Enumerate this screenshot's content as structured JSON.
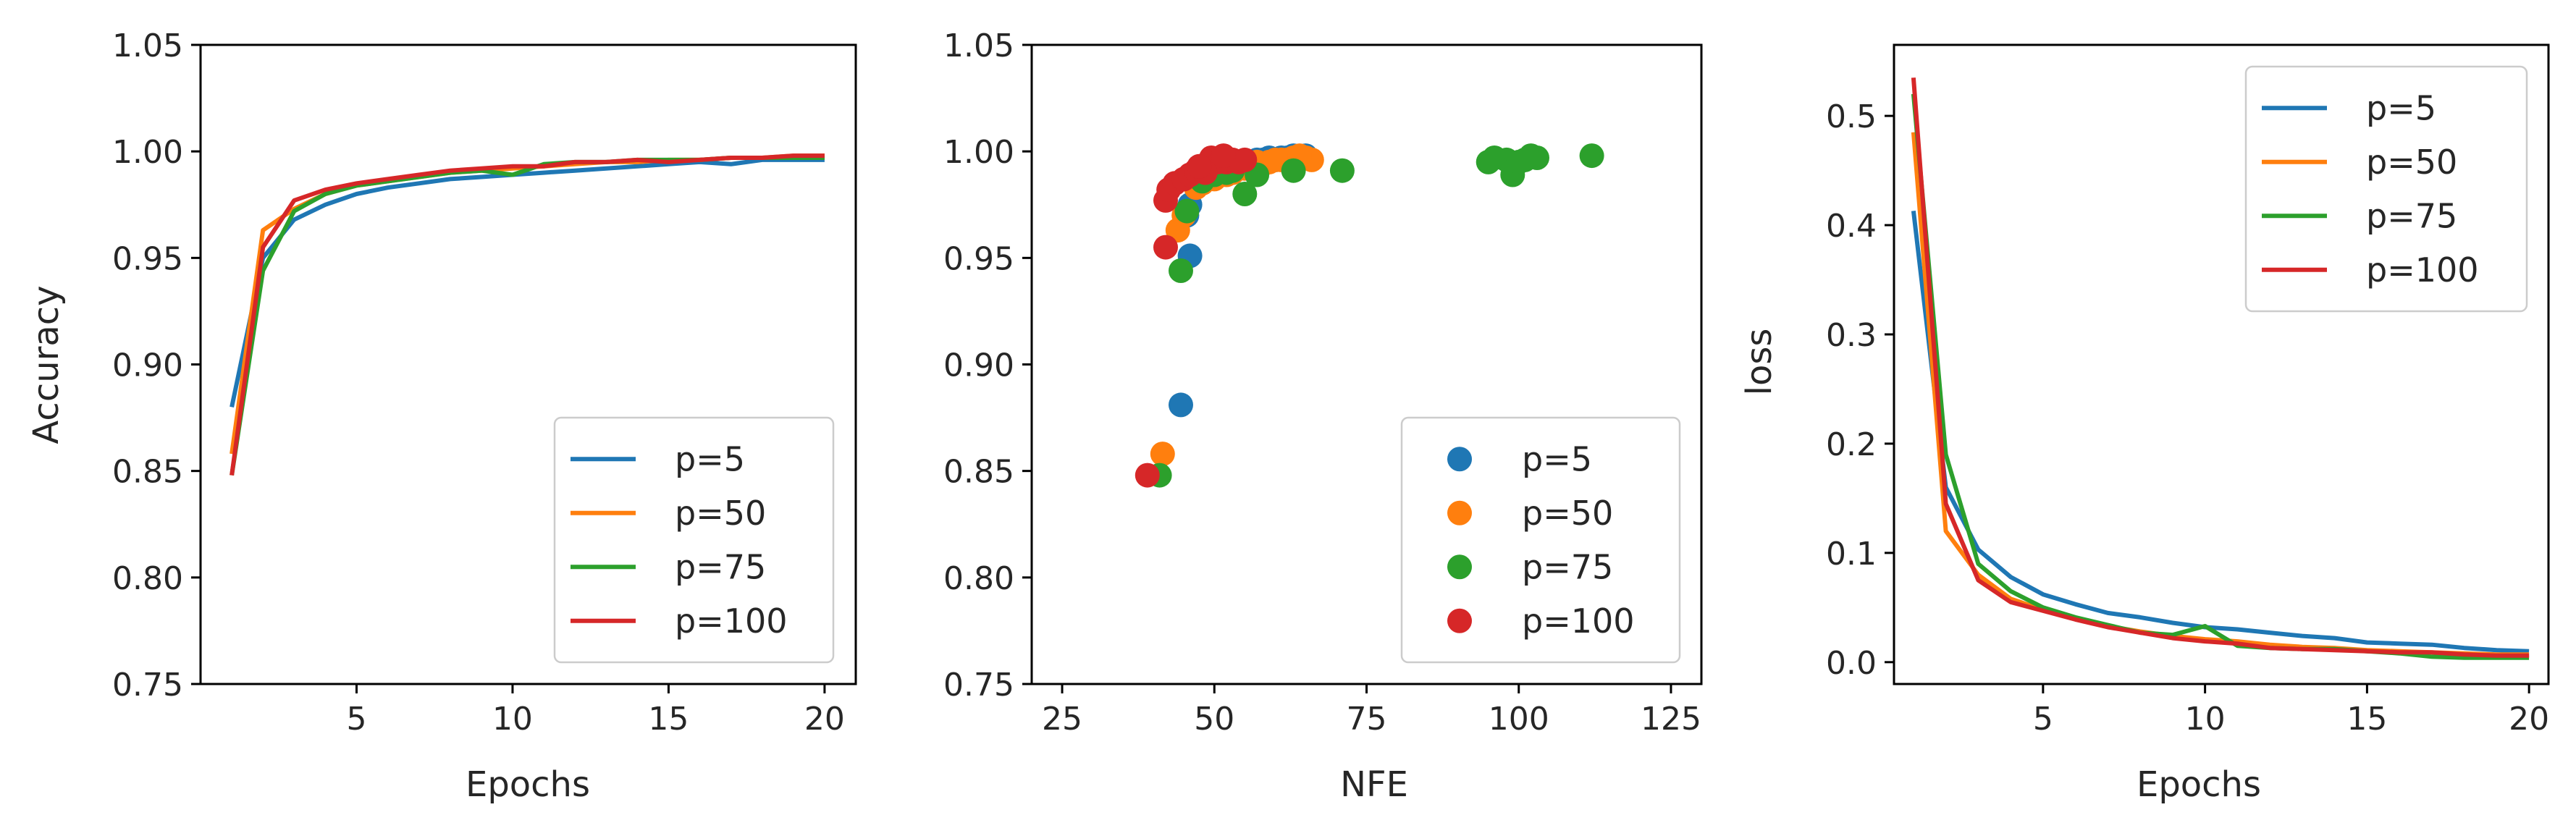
{
  "chart_data": [
    {
      "type": "line",
      "xlabel": "Epochs",
      "ylabel": "Accuracy",
      "xlim": [
        0,
        21
      ],
      "ylim": [
        0.75,
        1.05
      ],
      "xticks": [
        5,
        10,
        15,
        20
      ],
      "yticks": [
        0.75,
        0.8,
        0.85,
        0.9,
        0.95,
        1.0,
        1.05
      ],
      "ytick_labels": [
        "0.75",
        "0.80",
        "0.85",
        "0.90",
        "0.95",
        "1.00",
        "1.05"
      ],
      "legend_position": "lower-right",
      "x": [
        1,
        2,
        3,
        4,
        5,
        6,
        7,
        8,
        9,
        10,
        11,
        12,
        13,
        14,
        15,
        16,
        17,
        18,
        19,
        20
      ],
      "series": [
        {
          "name": "p=5",
          "color": "#1f77b4",
          "values": [
            0.88,
            0.95,
            0.968,
            0.975,
            0.98,
            0.983,
            0.985,
            0.987,
            0.988,
            0.989,
            0.99,
            0.991,
            0.992,
            0.993,
            0.994,
            0.995,
            0.994,
            0.996,
            0.996,
            0.996
          ]
        },
        {
          "name": "p=50",
          "color": "#ff7f0e",
          "values": [
            0.858,
            0.963,
            0.973,
            0.98,
            0.984,
            0.986,
            0.988,
            0.99,
            0.991,
            0.992,
            0.993,
            0.994,
            0.995,
            0.995,
            0.996,
            0.996,
            0.997,
            0.997,
            0.998,
            0.998
          ]
        },
        {
          "name": "p=75",
          "color": "#2ca02c",
          "values": [
            0.848,
            0.944,
            0.972,
            0.98,
            0.984,
            0.986,
            0.988,
            0.99,
            0.991,
            0.989,
            0.994,
            0.995,
            0.995,
            0.996,
            0.996,
            0.996,
            0.997,
            0.997,
            0.997,
            0.997
          ]
        },
        {
          "name": "p=100",
          "color": "#d62728",
          "values": [
            0.848,
            0.955,
            0.977,
            0.982,
            0.985,
            0.987,
            0.989,
            0.991,
            0.992,
            0.993,
            0.993,
            0.995,
            0.995,
            0.996,
            0.995,
            0.996,
            0.997,
            0.997,
            0.998,
            0.998
          ]
        }
      ]
    },
    {
      "type": "scatter",
      "xlabel": "NFE",
      "ylabel": "",
      "xlim": [
        20,
        130
      ],
      "ylim": [
        0.75,
        1.05
      ],
      "xticks": [
        25,
        50,
        75,
        100,
        125
      ],
      "yticks": [
        0.75,
        0.8,
        0.85,
        0.9,
        0.95,
        1.0,
        1.05
      ],
      "ytick_labels": [
        "0.75",
        "0.80",
        "0.85",
        "0.90",
        "0.95",
        "1.00",
        "1.05"
      ],
      "legend_position": "lower-right",
      "series": [
        {
          "name": "p=5",
          "color": "#1f77b4",
          "points": [
            [
              44.5,
              0.881
            ],
            [
              46,
              0.951
            ],
            [
              45.5,
              0.97
            ],
            [
              46,
              0.975
            ],
            [
              47,
              0.984
            ],
            [
              48,
              0.986
            ],
            [
              50,
              0.991
            ],
            [
              52,
              0.993
            ],
            [
              55,
              0.995
            ],
            [
              58,
              0.996
            ],
            [
              60,
              0.996
            ],
            [
              62,
              0.997
            ],
            [
              64,
              0.996
            ],
            [
              52,
              0.994
            ],
            [
              54,
              0.995
            ],
            [
              57,
              0.996
            ],
            [
              59,
              0.997
            ],
            [
              61,
              0.997
            ],
            [
              63,
              0.998
            ],
            [
              65,
              0.998
            ]
          ]
        },
        {
          "name": "p=50",
          "color": "#ff7f0e",
          "points": [
            [
              41.5,
              0.858
            ],
            [
              44,
              0.963
            ],
            [
              45,
              0.97
            ],
            [
              47,
              0.983
            ],
            [
              50,
              0.987
            ],
            [
              53,
              0.99
            ],
            [
              56,
              0.993
            ],
            [
              59,
              0.995
            ],
            [
              61,
              0.996
            ],
            [
              63,
              0.997
            ],
            [
              65,
              0.997
            ],
            [
              66,
              0.996
            ],
            [
              48,
              0.985
            ],
            [
              52,
              0.989
            ],
            [
              55,
              0.992
            ],
            [
              58,
              0.994
            ],
            [
              62,
              0.996
            ],
            [
              64,
              0.998
            ],
            [
              60,
              0.996
            ],
            [
              57,
              0.995
            ]
          ]
        },
        {
          "name": "p=75",
          "color": "#2ca02c",
          "points": [
            [
              41,
              0.848
            ],
            [
              44.5,
              0.944
            ],
            [
              45.5,
              0.972
            ],
            [
              50,
              0.989
            ],
            [
              52,
              0.99
            ],
            [
              55,
              0.98
            ],
            [
              57,
              0.989
            ],
            [
              63,
              0.991
            ],
            [
              71,
              0.991
            ],
            [
              95,
              0.995
            ],
            [
              98,
              0.996
            ],
            [
              99,
              0.989
            ],
            [
              101,
              0.996
            ],
            [
              103,
              0.997
            ],
            [
              102,
              0.998
            ],
            [
              112,
              0.998
            ],
            [
              48,
              0.986
            ],
            [
              53,
              0.991
            ],
            [
              96,
              0.997
            ],
            [
              100,
              0.995
            ]
          ]
        },
        {
          "name": "p=100",
          "color": "#d62728",
          "points": [
            [
              39,
              0.848
            ],
            [
              42,
              0.955
            ],
            [
              42,
              0.977
            ],
            [
              42.5,
              0.982
            ],
            [
              43.5,
              0.985
            ],
            [
              45,
              0.987
            ],
            [
              46,
              0.989
            ],
            [
              47,
              0.991
            ],
            [
              48,
              0.992
            ],
            [
              49,
              0.993
            ],
            [
              49.5,
              0.997
            ],
            [
              50.5,
              0.995
            ],
            [
              51,
              0.996
            ],
            [
              52,
              0.995
            ],
            [
              53,
              0.996
            ],
            [
              54,
              0.995
            ],
            [
              55,
              0.996
            ],
            [
              48.5,
              0.99
            ],
            [
              51.5,
              0.998
            ],
            [
              47.5,
              0.993
            ]
          ]
        }
      ]
    },
    {
      "type": "line",
      "xlabel": "Epochs",
      "ylabel": "loss",
      "xlim": [
        0.4,
        20.6
      ],
      "ylim": [
        -0.02,
        0.565
      ],
      "xticks": [
        5,
        10,
        15,
        20
      ],
      "yticks": [
        0.0,
        0.1,
        0.2,
        0.3,
        0.4,
        0.5
      ],
      "ytick_labels": [
        "0.0",
        "0.1",
        "0.2",
        "0.3",
        "0.4",
        "0.5"
      ],
      "legend_position": "upper-right",
      "x": [
        1,
        2,
        3,
        4,
        5,
        6,
        7,
        8,
        9,
        10,
        11,
        12,
        13,
        14,
        15,
        16,
        17,
        18,
        19,
        20
      ],
      "series": [
        {
          "name": "p=5",
          "color": "#1f77b4",
          "values": [
            0.413,
            0.16,
            0.103,
            0.078,
            0.062,
            0.053,
            0.045,
            0.041,
            0.036,
            0.032,
            0.03,
            0.027,
            0.024,
            0.022,
            0.018,
            0.017,
            0.016,
            0.013,
            0.011,
            0.01
          ]
        },
        {
          "name": "p=50",
          "color": "#ff7f0e",
          "values": [
            0.485,
            0.12,
            0.08,
            0.058,
            0.048,
            0.04,
            0.033,
            0.028,
            0.024,
            0.021,
            0.019,
            0.016,
            0.014,
            0.013,
            0.011,
            0.01,
            0.009,
            0.008,
            0.007,
            0.007
          ]
        },
        {
          "name": "p=75",
          "color": "#2ca02c",
          "values": [
            0.52,
            0.19,
            0.09,
            0.065,
            0.05,
            0.041,
            0.034,
            0.027,
            0.025,
            0.033,
            0.015,
            0.013,
            0.012,
            0.012,
            0.01,
            0.008,
            0.005,
            0.004,
            0.004,
            0.004
          ]
        },
        {
          "name": "p=100",
          "color": "#d62728",
          "values": [
            0.535,
            0.145,
            0.075,
            0.055,
            0.047,
            0.039,
            0.032,
            0.027,
            0.022,
            0.019,
            0.017,
            0.013,
            0.012,
            0.011,
            0.01,
            0.009,
            0.009,
            0.007,
            0.006,
            0.006
          ]
        }
      ]
    }
  ]
}
